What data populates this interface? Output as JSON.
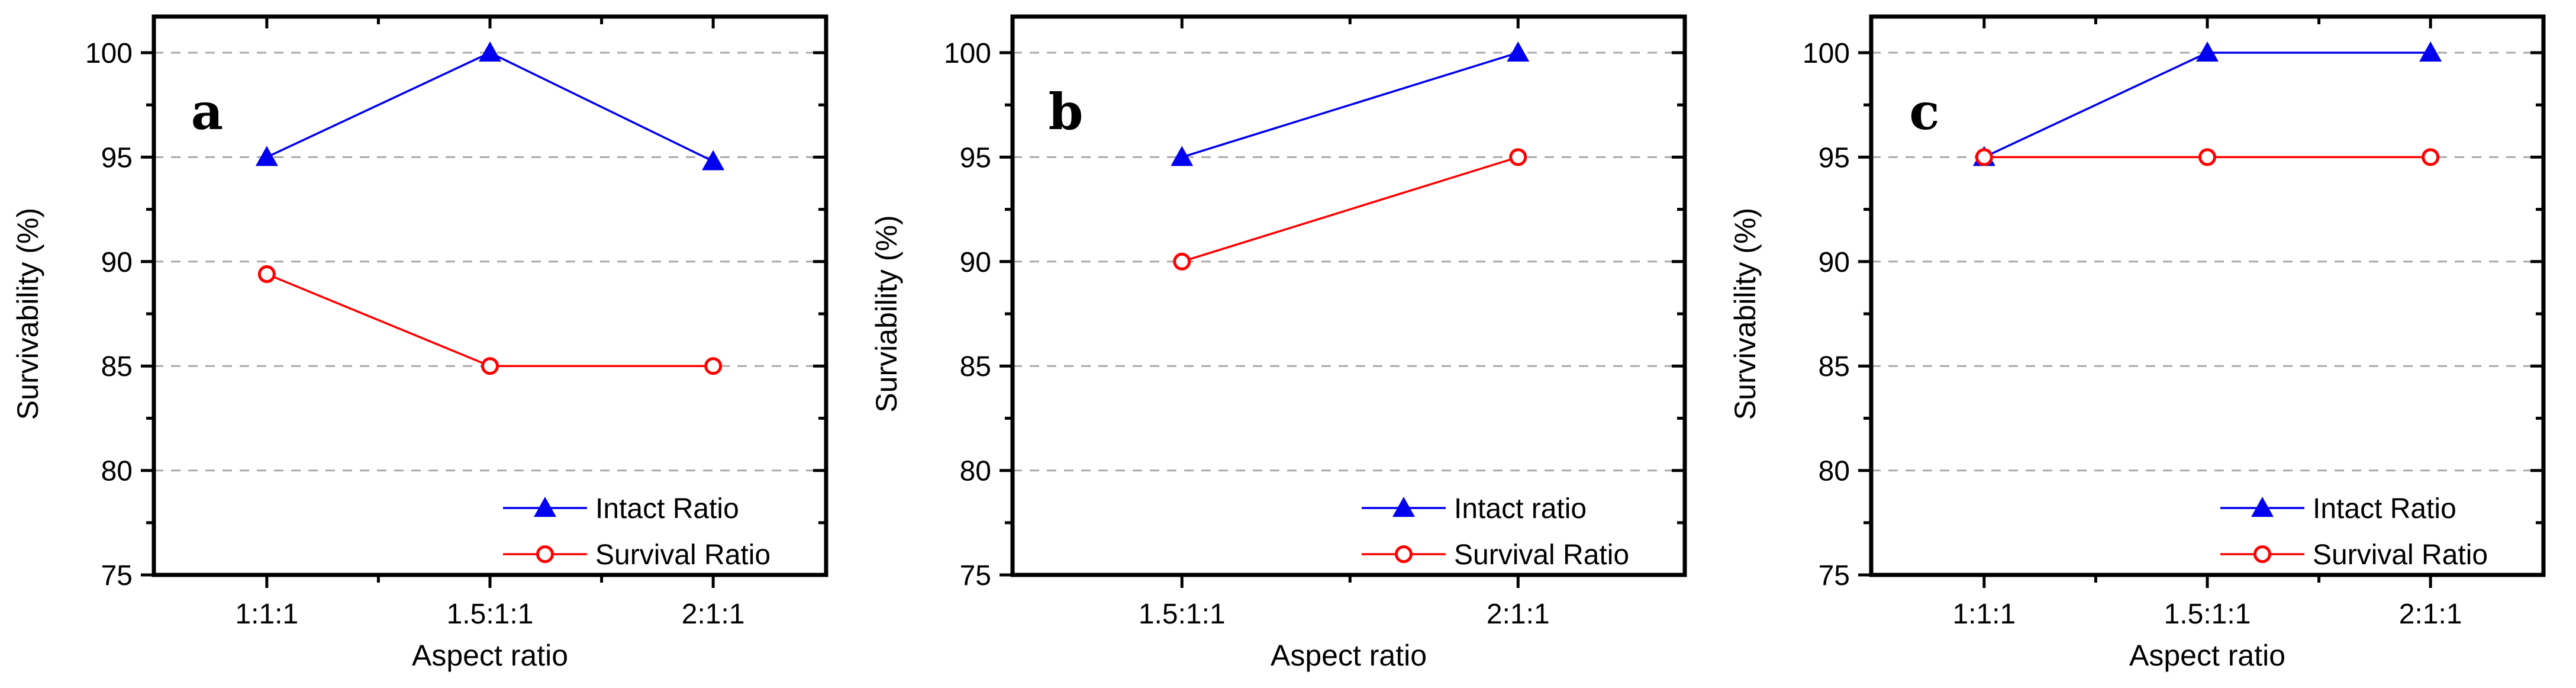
{
  "figure": {
    "background": "#FFFFFF"
  },
  "colors": {
    "intact_blue": "#0000EE",
    "survival_red": "#FF0000",
    "gridline_gray": "#A9A9A9",
    "axis_black": "#000000"
  },
  "chart_data": [
    {
      "type": "line",
      "panel_letter": "a",
      "xlabel": "Aspect ratio",
      "ylabel": "Survivability (%)",
      "categories": [
        "1:1:1",
        "1.5:1:1",
        "2:1:1"
      ],
      "ylim": [
        75,
        101.7
      ],
      "yticks": [
        75,
        80,
        85,
        90,
        95,
        100
      ],
      "grid": "horizontal dashed at major y ticks",
      "legend_position": "lower right",
      "series": [
        {
          "name": "Intact Ratio",
          "marker": "triangle",
          "color_key": "intact_blue",
          "values": [
            95,
            100,
            94.8
          ]
        },
        {
          "name": "Survival Ratio",
          "marker": "circle",
          "color_key": "survival_red",
          "values": [
            89.4,
            85,
            85
          ]
        }
      ]
    },
    {
      "type": "line",
      "panel_letter": "b",
      "xlabel": "Aspect ratio",
      "ylabel": "Surviability (%)",
      "categories": [
        "1.5:1:1",
        "2:1:1"
      ],
      "ylim": [
        75,
        101.7
      ],
      "yticks": [
        75,
        80,
        85,
        90,
        95,
        100
      ],
      "grid": "horizontal dashed at major y ticks",
      "legend_position": "lower right",
      "series": [
        {
          "name": "Intact ratio",
          "marker": "triangle",
          "color_key": "intact_blue",
          "values": [
            95,
            100
          ]
        },
        {
          "name": "Survival Ratio",
          "marker": "circle",
          "color_key": "survival_red",
          "values": [
            90,
            95
          ]
        }
      ]
    },
    {
      "type": "line",
      "panel_letter": "c",
      "xlabel": "Aspect ratio",
      "ylabel": "Survivability (%)",
      "categories": [
        "1:1:1",
        "1.5:1:1",
        "2:1:1"
      ],
      "ylim": [
        75,
        101.7
      ],
      "yticks": [
        75,
        80,
        85,
        90,
        95,
        100
      ],
      "grid": "horizontal dashed at major y ticks",
      "legend_position": "lower right",
      "series": [
        {
          "name": "Intact Ratio",
          "marker": "triangle",
          "color_key": "intact_blue",
          "values": [
            95,
            100,
            100
          ]
        },
        {
          "name": "Survival Ratio",
          "marker": "circle",
          "color_key": "survival_red",
          "values": [
            95,
            95,
            95
          ]
        }
      ]
    }
  ]
}
